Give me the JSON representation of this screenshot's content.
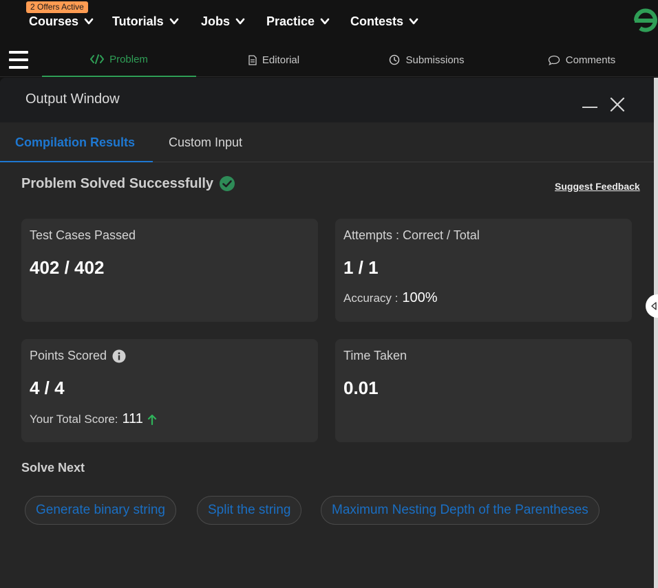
{
  "nav": {
    "offers_badge": "2 Offers Active",
    "items": [
      {
        "label": "Courses"
      },
      {
        "label": "Tutorials"
      },
      {
        "label": "Jobs"
      },
      {
        "label": "Practice"
      },
      {
        "label": "Contests"
      }
    ],
    "logo_icon": "gfg-logo-icon",
    "accent_color": "#2f9e56"
  },
  "subnav": {
    "tabs": [
      {
        "label": "Problem",
        "icon": "code-icon",
        "active": true
      },
      {
        "label": "Editorial",
        "icon": "document-icon"
      },
      {
        "label": "Submissions",
        "icon": "clock-icon"
      },
      {
        "label": "Comments",
        "icon": "comment-icon"
      }
    ]
  },
  "output_window": {
    "title": "Output Window",
    "tabs": [
      {
        "label": "Compilation Results",
        "active": true
      },
      {
        "label": "Custom Input"
      }
    ],
    "status": "Problem Solved Successfully",
    "suggest_feedback": "Suggest Feedback",
    "cards": {
      "test_cases": {
        "label": "Test Cases Passed",
        "value": "402 / 402"
      },
      "attempts": {
        "label": "Attempts : Correct / Total",
        "value": "1 / 1",
        "accuracy_label": "Accuracy :",
        "accuracy_value": "100%"
      },
      "points": {
        "label": "Points Scored",
        "value": "4 / 4",
        "total_label": "Your Total Score:",
        "total_value": "111"
      },
      "time": {
        "label": "Time Taken",
        "value": "0.01"
      }
    },
    "solve_next": {
      "title": "Solve Next",
      "items": [
        {
          "label": "Generate binary string"
        },
        {
          "label": "Split the string"
        },
        {
          "label": "Maximum Nesting Depth of the Parentheses"
        }
      ]
    },
    "link_color": "#1e78d2",
    "success_color": "#2e8b57"
  }
}
